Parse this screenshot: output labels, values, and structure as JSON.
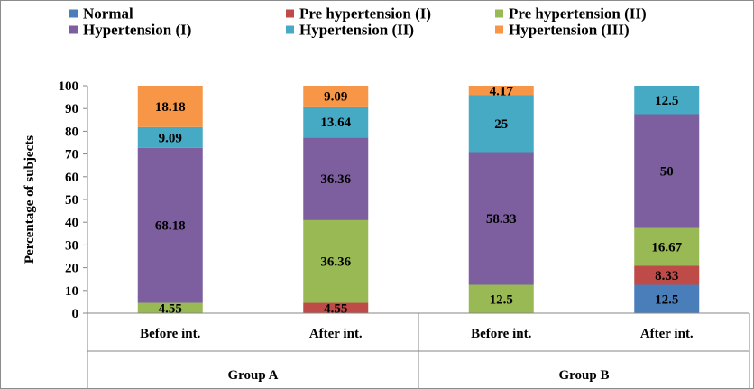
{
  "chart_data": {
    "type": "bar",
    "stacked": true,
    "title": "",
    "xlabel": "",
    "ylabel": "Percentage of subjects",
    "ylim": [
      0,
      100
    ],
    "ytick_step": 10,
    "grid": false,
    "legend_position": "top",
    "categories": [
      "Before int.",
      "After int.",
      "Before int.",
      "After int."
    ],
    "groups": [
      {
        "label": "Group A",
        "categories": [
          0,
          1
        ]
      },
      {
        "label": "Group B",
        "categories": [
          2,
          3
        ]
      }
    ],
    "series": [
      {
        "name": "Normal",
        "color": "#4a7ebb",
        "values": [
          0,
          0,
          0,
          12.5
        ],
        "labels": [
          "",
          "",
          "",
          "12.5"
        ]
      },
      {
        "name": "Pre hypertension (I)",
        "color": "#be4b48",
        "values": [
          0,
          4.55,
          0,
          8.33
        ],
        "labels": [
          "",
          "4.55",
          "",
          "8.33"
        ]
      },
      {
        "name": "Pre hypertension (II)",
        "color": "#98b954",
        "values": [
          4.55,
          36.36,
          12.5,
          16.67
        ],
        "labels": [
          "4.55",
          "36.36",
          "12.5",
          "16.67"
        ]
      },
      {
        "name": "Hypertension (I)",
        "color": "#7d5fa0",
        "values": [
          68.18,
          36.36,
          58.33,
          50
        ],
        "labels": [
          "68.18",
          "36.36",
          "58.33",
          "50"
        ]
      },
      {
        "name": "Hypertension (II)",
        "color": "#46aac5",
        "values": [
          9.09,
          13.64,
          25,
          12.5
        ],
        "labels": [
          "9.09",
          "13.64",
          "25",
          "12.5"
        ]
      },
      {
        "name": "Hypertension (III)",
        "color": "#f79646",
        "values": [
          18.18,
          9.09,
          4.17,
          0
        ],
        "labels": [
          "18.18",
          "9.09",
          "4.17",
          ""
        ]
      }
    ]
  }
}
